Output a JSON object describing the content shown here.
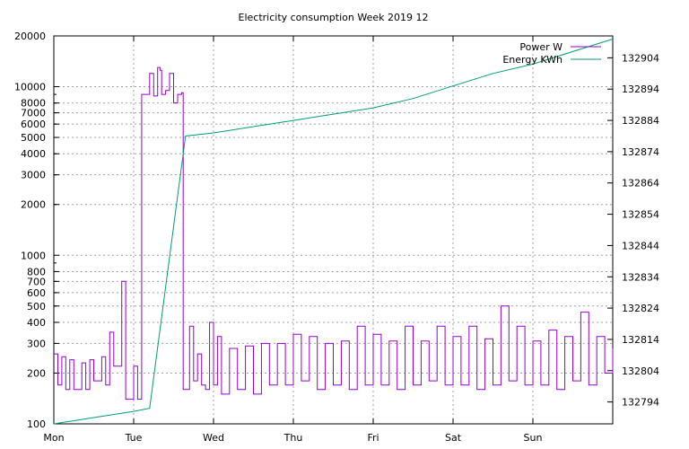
{
  "chart_data": {
    "type": "line",
    "title": "Electricity consumption Week 2019 12",
    "xlabel": "",
    "ylabel": "",
    "y2label": "",
    "grid": true,
    "legend_position": "top-right",
    "x_ticks": [
      "Mon",
      "Tue",
      "Wed",
      "Thu",
      "Fri",
      "Sat",
      "Sun"
    ],
    "x_range": [
      0,
      7
    ],
    "y_scale": "log",
    "y_range": [
      100,
      20000
    ],
    "y_ticks": [
      "100",
      "200",
      "300",
      "400",
      "500",
      "600",
      "700",
      "800",
      "1000",
      "2000",
      "3000",
      "4000",
      "5000",
      "6000",
      "7000",
      "8000",
      "10000",
      "20000"
    ],
    "y2_range": [
      132787,
      132911
    ],
    "y2_ticks": [
      "132794",
      "132804",
      "132814",
      "132824",
      "132834",
      "132844",
      "132854",
      "132864",
      "132874",
      "132884",
      "132894",
      "132904"
    ],
    "series": [
      {
        "name": "Power W",
        "axis": "y",
        "color": "#9400d3",
        "x": [
          0.0,
          0.05,
          0.1,
          0.15,
          0.2,
          0.25,
          0.3,
          0.35,
          0.4,
          0.45,
          0.5,
          0.55,
          0.6,
          0.65,
          0.7,
          0.75,
          0.8,
          0.85,
          0.9,
          0.95,
          1.0,
          1.05,
          1.1,
          1.15,
          1.2,
          1.25,
          1.3,
          1.33,
          1.35,
          1.4,
          1.45,
          1.5,
          1.55,
          1.6,
          1.62,
          1.65,
          1.7,
          1.75,
          1.8,
          1.85,
          1.9,
          1.95,
          2.0,
          2.05,
          2.1,
          2.2,
          2.3,
          2.4,
          2.5,
          2.6,
          2.7,
          2.8,
          2.9,
          3.0,
          3.1,
          3.2,
          3.3,
          3.4,
          3.5,
          3.6,
          3.7,
          3.8,
          3.9,
          4.0,
          4.1,
          4.2,
          4.3,
          4.4,
          4.5,
          4.6,
          4.7,
          4.8,
          4.9,
          5.0,
          5.1,
          5.2,
          5.3,
          5.4,
          5.5,
          5.6,
          5.7,
          5.8,
          5.9,
          6.0,
          6.1,
          6.2,
          6.3,
          6.4,
          6.5,
          6.6,
          6.7,
          6.8,
          6.9,
          7.0
        ],
        "y": [
          260,
          170,
          250,
          160,
          240,
          160,
          160,
          230,
          160,
          240,
          180,
          180,
          250,
          170,
          350,
          220,
          220,
          700,
          140,
          140,
          220,
          140,
          9000,
          9000,
          12000,
          8800,
          13000,
          12500,
          9000,
          9500,
          12000,
          8000,
          9000,
          9200,
          160,
          160,
          380,
          180,
          260,
          170,
          160,
          400,
          170,
          330,
          150,
          280,
          160,
          290,
          150,
          300,
          170,
          300,
          170,
          340,
          180,
          330,
          160,
          300,
          170,
          310,
          160,
          380,
          170,
          340,
          170,
          310,
          160,
          380,
          170,
          310,
          180,
          380,
          170,
          330,
          170,
          380,
          160,
          320,
          170,
          500,
          180,
          380,
          170,
          310,
          170,
          360,
          160,
          330,
          180,
          460,
          170,
          330,
          200,
          280
        ]
      },
      {
        "name": "Energy KWh",
        "axis": "y2",
        "color": "#009e73",
        "x": [
          0.0,
          0.5,
          1.0,
          1.2,
          1.65,
          2.0,
          2.5,
          3.0,
          3.5,
          4.0,
          4.5,
          5.0,
          5.5,
          6.0,
          6.5,
          7.0
        ],
        "y": [
          132787,
          132789,
          132791,
          132792,
          132879,
          132880,
          132882,
          132884,
          132886,
          132888,
          132891,
          132895,
          132899,
          132902,
          132906,
          132910
        ]
      }
    ]
  }
}
